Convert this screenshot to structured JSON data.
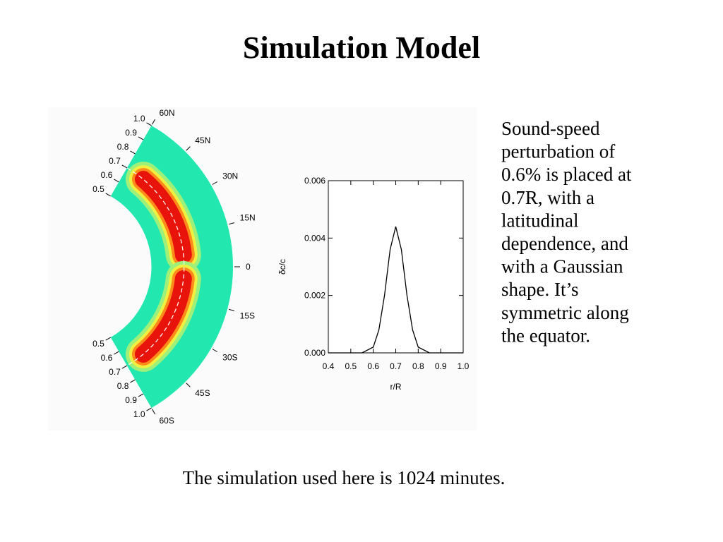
{
  "title": "Simulation Model",
  "sector": {
    "radius_labels_top": [
      "1.0",
      "0.9",
      "0.8",
      "0.7",
      "0.6",
      "0.5"
    ],
    "radius_labels_bottom": [
      "0.5",
      "0.6",
      "0.7",
      "0.8",
      "0.9",
      "1.0"
    ],
    "latitude_labels": [
      "60N",
      "45N",
      "30N",
      "15N",
      "0",
      "15S",
      "30S",
      "45S",
      "60S"
    ]
  },
  "chart_data": {
    "type": "line",
    "xlabel": "r/R",
    "ylabel": "δc/c",
    "x": [
      0.4,
      0.45,
      0.5,
      0.55,
      0.6,
      0.625,
      0.65,
      0.675,
      0.7,
      0.725,
      0.75,
      0.775,
      0.8,
      0.85,
      0.9,
      0.95,
      1.0
    ],
    "values": [
      0,
      0,
      0,
      0,
      0.0002,
      0.0008,
      0.002,
      0.0036,
      0.0044,
      0.0036,
      0.002,
      0.0008,
      0.0002,
      0,
      0,
      0,
      0
    ],
    "color": "#000000",
    "xlim": [
      0.4,
      1.0
    ],
    "ylim": [
      0,
      0.006
    ],
    "xticks": [
      0.4,
      0.5,
      0.6,
      0.7,
      0.8,
      0.9,
      {
        "value": 1.0,
        "label": "1.0"
      }
    ],
    "yticks": [
      {
        "value": 0,
        "label": "0.000"
      },
      {
        "value": 0.002,
        "label": "0.002"
      },
      {
        "value": 0.004,
        "label": "0.004"
      },
      {
        "value": 0.006,
        "label": "0.006"
      }
    ]
  },
  "description": [
    "Sound-speed",
    "perturbation of",
    "0.6% is placed at",
    "0.7R, with a",
    "latitudinal",
    "dependence, and",
    "with a Gaussian",
    "shape. It’s",
    "symmetric along",
    "the equator."
  ],
  "caption": "The simulation used here is 1024 minutes."
}
